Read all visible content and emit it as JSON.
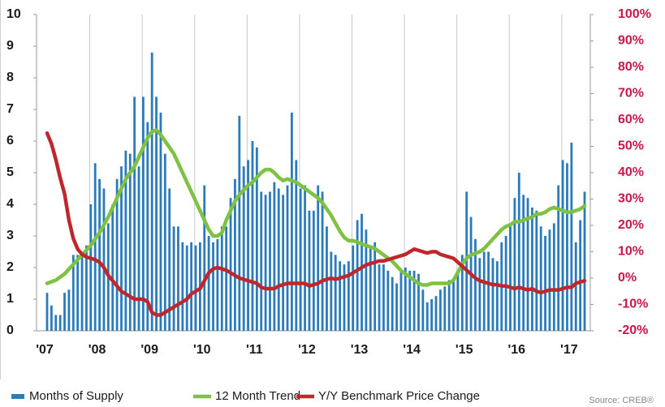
{
  "chart_data": {
    "type": "bar",
    "categories": [
      "'07",
      null,
      null,
      null,
      null,
      null,
      null,
      null,
      null,
      null,
      null,
      null,
      "'08",
      null,
      null,
      null,
      null,
      null,
      null,
      null,
      null,
      null,
      null,
      null,
      "'09",
      null,
      null,
      null,
      null,
      null,
      null,
      null,
      null,
      null,
      null,
      null,
      "'10",
      null,
      null,
      null,
      null,
      null,
      null,
      null,
      null,
      null,
      null,
      null,
      "'11",
      null,
      null,
      null,
      null,
      null,
      null,
      null,
      null,
      null,
      null,
      null,
      "'12",
      null,
      null,
      null,
      null,
      null,
      null,
      null,
      null,
      null,
      null,
      null,
      "'13",
      null,
      null,
      null,
      null,
      null,
      null,
      null,
      null,
      null,
      null,
      null,
      "'14",
      null,
      null,
      null,
      null,
      null,
      null,
      null,
      null,
      null,
      null,
      null,
      "'15",
      null,
      null,
      null,
      null,
      null,
      null,
      null,
      null,
      null,
      null,
      null,
      "'16",
      null,
      null,
      null,
      null,
      null,
      null,
      null,
      null,
      null,
      null,
      null,
      "'17",
      null,
      null,
      null
    ],
    "series": [
      {
        "name": "Months of Supply",
        "type": "bar",
        "color": "#2b7bba",
        "values": [
          1.2,
          0.8,
          0.5,
          0.5,
          1.2,
          1.3,
          2.4,
          2.4,
          2.5,
          2.7,
          4.0,
          5.3,
          4.8,
          4.5,
          3.4,
          4.0,
          4.8,
          5.2,
          5.7,
          5.6,
          7.4,
          5.2,
          7.4,
          6.6,
          8.8,
          7.4,
          6.9,
          5.6,
          4.5,
          3.3,
          3.3,
          2.8,
          2.7,
          2.8,
          2.7,
          2.8,
          4.6,
          3.0,
          2.8,
          2.9,
          3.3,
          3.3,
          4.2,
          4.8,
          6.8,
          5.2,
          5.4,
          6.0,
          5.8,
          4.4,
          4.3,
          4.4,
          4.7,
          4.5,
          4.3,
          4.6,
          6.9,
          5.4,
          4.5,
          4.6,
          3.8,
          3.8,
          4.6,
          4.4,
          3.3,
          2.5,
          2.4,
          2.2,
          2.1,
          2.2,
          2.7,
          3.5,
          3.7,
          3.2,
          2.7,
          2.8,
          2.1,
          2.1,
          1.9,
          1.7,
          1.5,
          1.9,
          2.0,
          1.9,
          1.9,
          1.8,
          1.3,
          0.9,
          1.0,
          1.1,
          1.3,
          1.4,
          1.6,
          1.6,
          1.9,
          2.4,
          4.4,
          3.6,
          2.9,
          2.3,
          2.5,
          2.5,
          2.3,
          2.2,
          2.8,
          3.0,
          3.3,
          4.2,
          5.0,
          4.3,
          4.2,
          3.9,
          3.8,
          3.3,
          3.0,
          3.2,
          3.4,
          4.6,
          5.4,
          5.3,
          5.95,
          2.8,
          3.5,
          4.4
        ]
      },
      {
        "name": "12 Month Trend",
        "type": "line",
        "color": "#7dc242",
        "values": [
          1.5,
          1.55,
          1.6,
          1.7,
          1.8,
          1.95,
          2.1,
          2.25,
          2.4,
          2.55,
          2.7,
          2.9,
          3.1,
          3.35,
          3.6,
          3.9,
          4.2,
          4.5,
          4.8,
          5.0,
          5.2,
          5.5,
          5.8,
          6.1,
          6.3,
          6.35,
          6.2,
          6.0,
          5.8,
          5.6,
          5.3,
          5.0,
          4.7,
          4.4,
          4.1,
          3.8,
          3.5,
          3.2,
          3.0,
          3.0,
          3.1,
          3.5,
          3.8,
          4.1,
          4.3,
          4.45,
          4.6,
          4.7,
          4.85,
          5.0,
          5.1,
          5.1,
          5.0,
          4.85,
          4.75,
          4.8,
          4.75,
          4.7,
          4.6,
          4.5,
          4.4,
          4.3,
          4.2,
          4.05,
          3.85,
          3.65,
          3.4,
          3.15,
          2.95,
          2.85,
          2.85,
          2.8,
          2.75,
          2.7,
          2.65,
          2.6,
          2.5,
          2.4,
          2.3,
          2.2,
          2.05,
          1.9,
          1.8,
          1.7,
          1.6,
          1.5,
          1.45,
          1.45,
          1.5,
          1.5,
          1.5,
          1.5,
          1.5,
          1.6,
          1.85,
          2.1,
          2.3,
          2.4,
          2.45,
          2.5,
          2.6,
          2.75,
          2.9,
          3.05,
          3.2,
          3.3,
          3.35,
          3.45,
          3.45,
          3.5,
          3.55,
          3.6,
          3.7,
          3.7,
          3.75,
          3.85,
          3.9,
          3.85,
          3.8,
          3.75,
          3.75,
          3.8,
          3.85,
          3.95
        ]
      },
      {
        "name": "Y/Y Benchmark Price Change",
        "type": "line",
        "axis": "y2",
        "color": "#c0272d",
        "values": [
          55,
          51,
          45,
          38,
          32,
          22,
          15,
          11,
          9,
          8,
          7.5,
          7,
          6,
          4,
          1,
          -1,
          -3,
          -5,
          -6,
          -7,
          -8,
          -8,
          -8,
          -9,
          -13,
          -14,
          -14,
          -13,
          -12,
          -11,
          -10,
          -9,
          -8,
          -6,
          -5,
          -4,
          -1,
          2,
          3.5,
          4,
          3.5,
          3,
          2,
          1,
          0,
          -0.5,
          -1,
          -1.5,
          -2,
          -3.5,
          -4,
          -4,
          -4,
          -3,
          -2.5,
          -2,
          -2,
          -2,
          -2,
          -2,
          -3,
          -2.5,
          -2,
          -1,
          -0.5,
          0,
          -0.5,
          0,
          0.5,
          1,
          2,
          3,
          4,
          5,
          5.5,
          6,
          6.5,
          6.5,
          7,
          7.5,
          8,
          8.5,
          9,
          10,
          11,
          10.5,
          10,
          9.5,
          10,
          10,
          9,
          8.5,
          8,
          7.5,
          6,
          4.5,
          3,
          1.5,
          0,
          -1,
          -1.5,
          -2,
          -2.5,
          -2.5,
          -3,
          -3,
          -3.5,
          -4,
          -3.5,
          -4,
          -4.5,
          -4,
          -5,
          -5.5,
          -5,
          -4.5,
          -4.5,
          -4.5,
          -4,
          -3.5,
          -3.5,
          -2,
          -1.5,
          -1
        ]
      }
    ],
    "ylim": [
      0,
      10
    ],
    "yticks": [
      0,
      1,
      2,
      3,
      4,
      5,
      6,
      7,
      8,
      9,
      10
    ],
    "y2lim": [
      -20,
      100
    ],
    "y2ticks": [
      {
        "value": -20,
        "label": "-20%"
      },
      {
        "value": -10,
        "label": "-10%"
      },
      {
        "value": 0,
        "label": "0%"
      },
      {
        "value": 10,
        "label": "10%"
      },
      {
        "value": 20,
        "label": "20%"
      },
      {
        "value": 30,
        "label": "30%"
      },
      {
        "value": 40,
        "label": "40%"
      },
      {
        "value": 50,
        "label": "50%"
      },
      {
        "value": 60,
        "label": "60%"
      },
      {
        "value": 70,
        "label": "70%"
      },
      {
        "value": 80,
        "label": "80%"
      },
      {
        "value": 90,
        "label": "90%"
      },
      {
        "value": 100,
        "label": "100%"
      }
    ],
    "y2_color": "#c8174a",
    "legend": "bottom",
    "source": "Source: CREB®"
  }
}
